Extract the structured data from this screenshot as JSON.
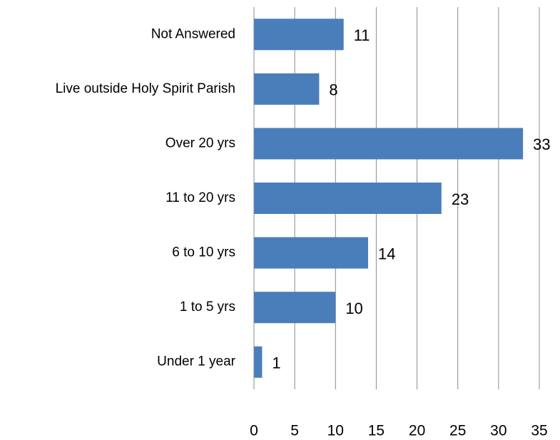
{
  "chart_data": {
    "type": "bar",
    "orientation": "horizontal",
    "categories": [
      "Not Answered",
      "Live outside Holy Spirit Parish",
      "Over 20 yrs",
      "11 to 20 yrs",
      "6 to 10 yrs",
      "1 to 5 yrs",
      "Under 1 year"
    ],
    "values": [
      11,
      8,
      33,
      23,
      14,
      10,
      1
    ],
    "color": "#4a7ebb",
    "xlim": [
      0,
      35
    ],
    "xticks": [
      0,
      5,
      10,
      15,
      20,
      25,
      30,
      35
    ],
    "grid": true
  }
}
